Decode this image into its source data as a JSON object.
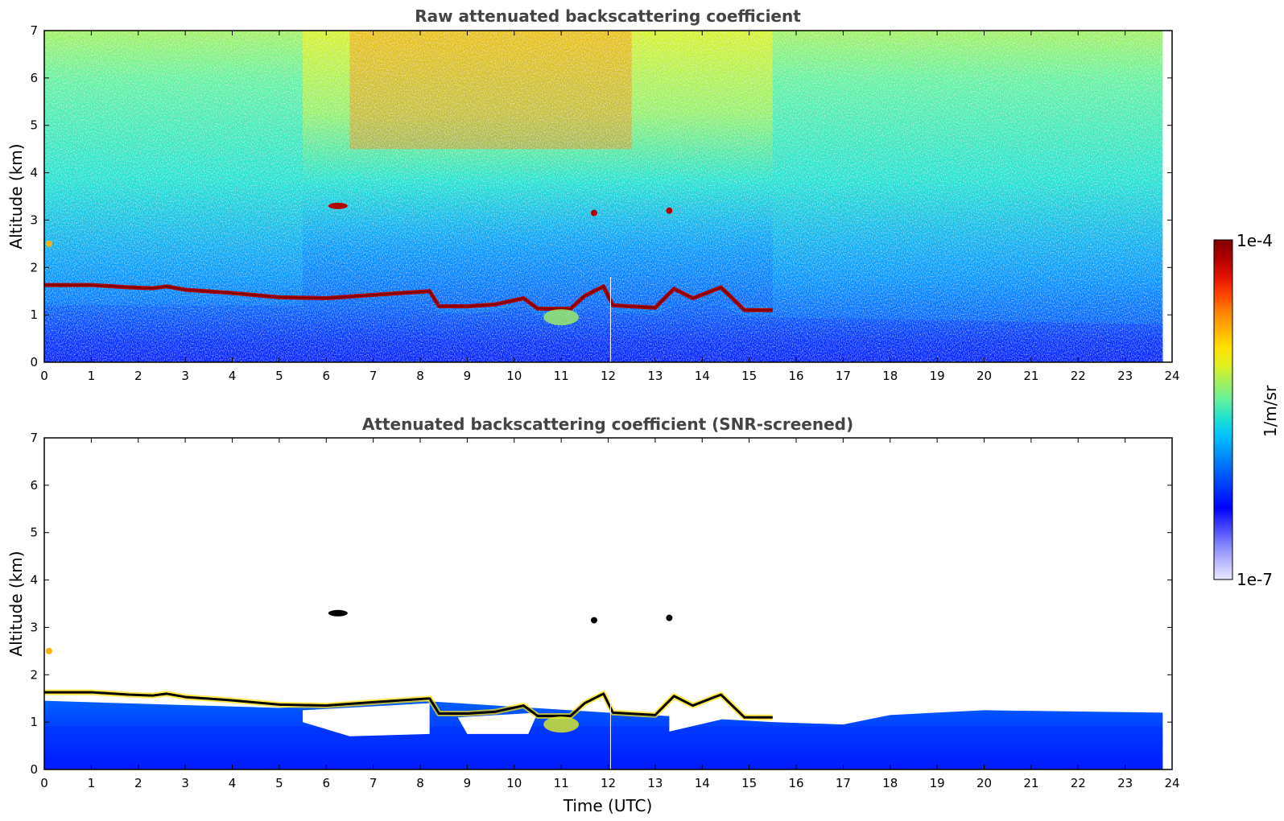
{
  "figure": {
    "colorbar": {
      "label": "1/m/sr",
      "top_label": "1e-4",
      "bottom_label": "1e-7",
      "colors": [
        "#7f0000",
        "#b00000",
        "#e01000",
        "#ff4000",
        "#ff8000",
        "#ffb000",
        "#ffe000",
        "#e0f020",
        "#a0f060",
        "#60f0a0",
        "#20e0d0",
        "#00c0ff",
        "#0090ff",
        "#0060ff",
        "#0030ff",
        "#0000ff",
        "#4040ff",
        "#8080ff",
        "#b8b8ff",
        "#e8e8ff"
      ]
    }
  },
  "chart_data": [
    {
      "type": "heatmap",
      "title": "Raw attenuated backscattering coefficient",
      "xlabel": "",
      "ylabel": "Altitude (km)",
      "xlim": [
        0,
        24
      ],
      "ylim": [
        0,
        7
      ],
      "x_ticks": [
        "0",
        "1",
        "2",
        "3",
        "4",
        "5",
        "6",
        "7",
        "8",
        "9",
        "10",
        "11",
        "12",
        "13",
        "14",
        "15",
        "16",
        "17",
        "18",
        "19",
        "20",
        "21",
        "22",
        "23",
        "24"
      ],
      "y_ticks": [
        "0",
        "1",
        "2",
        "3",
        "4",
        "5",
        "6",
        "7"
      ],
      "color_scale": "log",
      "clim": [
        "1e-7",
        "1e-4"
      ],
      "data_end_time": 23.8,
      "cloud_layer": [
        {
          "t": 0,
          "alt": 1.63
        },
        {
          "t": 1,
          "alt": 1.63
        },
        {
          "t": 1.8,
          "alt": 1.58
        },
        {
          "t": 2.3,
          "alt": 1.56
        },
        {
          "t": 2.6,
          "alt": 1.6
        },
        {
          "t": 3,
          "alt": 1.53
        },
        {
          "t": 4,
          "alt": 1.46
        },
        {
          "t": 5,
          "alt": 1.37
        },
        {
          "t": 6,
          "alt": 1.35
        },
        {
          "t": 7,
          "alt": 1.42
        },
        {
          "t": 8.2,
          "alt": 1.5
        },
        {
          "t": 8.4,
          "alt": 1.18
        },
        {
          "t": 9,
          "alt": 1.18
        },
        {
          "t": 9.6,
          "alt": 1.22
        },
        {
          "t": 10.2,
          "alt": 1.35
        },
        {
          "t": 10.5,
          "alt": 1.13
        },
        {
          "t": 11.2,
          "alt": 1.13
        },
        {
          "t": 11.5,
          "alt": 1.4
        },
        {
          "t": 11.9,
          "alt": 1.6
        },
        {
          "t": 12.1,
          "alt": 1.2
        },
        {
          "t": 13,
          "alt": 1.15
        },
        {
          "t": 13.4,
          "alt": 1.55
        },
        {
          "t": 13.8,
          "alt": 1.35
        },
        {
          "t": 14.4,
          "alt": 1.58
        },
        {
          "t": 14.9,
          "alt": 1.1
        },
        {
          "t": 15.5,
          "alt": 1.1
        }
      ],
      "isolated_clouds": [
        {
          "t": 6.25,
          "alt": 3.3
        },
        {
          "t": 11.7,
          "alt": 3.15
        },
        {
          "t": 13.3,
          "alt": 3.2
        },
        {
          "t": 0.1,
          "alt": 2.5
        }
      ]
    },
    {
      "type": "heatmap",
      "title": "Attenuated backscattering coefficient (SNR-screened)",
      "xlabel": "Time (UTC)",
      "ylabel": "Altitude (km)",
      "xlim": [
        0,
        24
      ],
      "ylim": [
        0,
        7
      ],
      "x_ticks": [
        "0",
        "1",
        "2",
        "3",
        "4",
        "5",
        "6",
        "7",
        "8",
        "9",
        "10",
        "11",
        "12",
        "13",
        "14",
        "15",
        "16",
        "17",
        "18",
        "19",
        "20",
        "21",
        "22",
        "23",
        "24"
      ],
      "y_ticks": [
        "0",
        "1",
        "2",
        "3",
        "4",
        "5",
        "6",
        "7"
      ],
      "color_scale": "log",
      "clim": [
        "1e-7",
        "1e-4"
      ],
      "data_end_time": 23.8,
      "screened_top": [
        {
          "t": 0,
          "alt": 1.45
        },
        {
          "t": 5,
          "alt": 1.3
        },
        {
          "t": 8,
          "alt": 1.45
        },
        {
          "t": 12,
          "alt": 1.2
        },
        {
          "t": 15.5,
          "alt": 1.0
        },
        {
          "t": 17,
          "alt": 0.95
        },
        {
          "t": 18,
          "alt": 1.15
        },
        {
          "t": 20,
          "alt": 1.25
        },
        {
          "t": 23.8,
          "alt": 1.2
        }
      ],
      "isolated_clouds": [
        {
          "t": 6.25,
          "alt": 3.3
        },
        {
          "t": 11.7,
          "alt": 3.15
        },
        {
          "t": 13.3,
          "alt": 3.2
        },
        {
          "t": 0.1,
          "alt": 2.5
        }
      ]
    }
  ]
}
